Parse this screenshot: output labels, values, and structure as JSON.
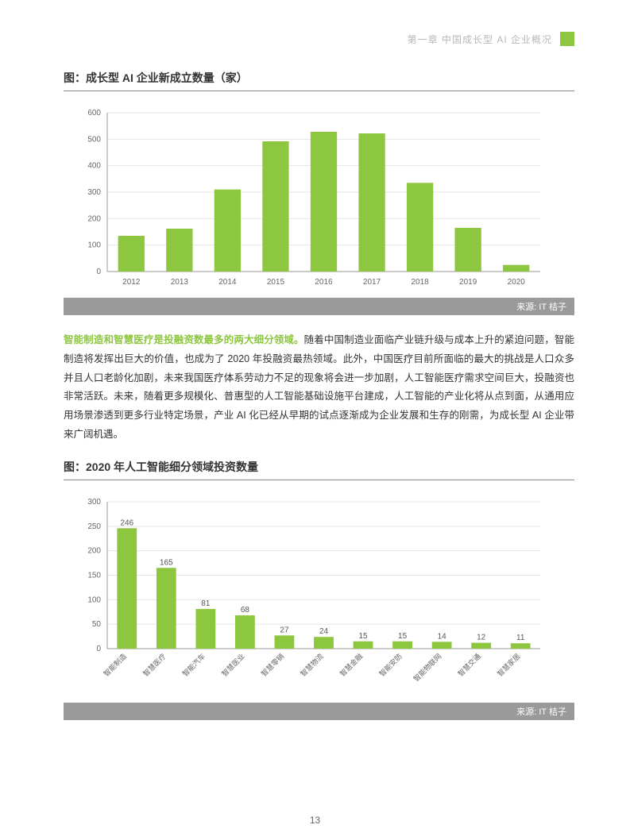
{
  "header": {
    "chapter": "第一章  中国成长型 AI 企业概况"
  },
  "chart1": {
    "title": "图：成长型 AI 企业新成立数量（家）",
    "type": "bar",
    "categories": [
      "2012",
      "2013",
      "2014",
      "2015",
      "2016",
      "2017",
      "2018",
      "2019",
      "2020"
    ],
    "values": [
      135,
      162,
      310,
      492,
      528,
      522,
      335,
      165,
      25
    ],
    "ylim": [
      0,
      600
    ],
    "ytick_step": 100,
    "bar_color": "#8dc63f",
    "axis_color": "#999",
    "grid_color": "#e5e5e5",
    "label_fontsize": 10,
    "bar_width": 0.55,
    "source": "来源: IT 桔子"
  },
  "paragraph": {
    "highlight": "智能制造和智慧医疗是投融资数最多的两大细分领域。",
    "rest": "随着中国制造业面临产业链升级与成本上升的紧迫问题，智能制造将发挥出巨大的价值，也成为了 2020 年投融资最热领域。此外，中国医疗目前所面临的最大的挑战是人口众多并且人口老龄化加剧，未来我国医疗体系劳动力不足的现象将会进一步加剧，人工智能医疗需求空间巨大，投融资也非常活跃。未来，随着更多规模化、普惠型的人工智能基础设施平台建成，人工智能的产业化将从点到面，从通用应用场景渗透到更多行业特定场景，产业 AI 化已经从早期的试点逐渐成为企业发展和生存的刚需，为成长型 AI 企业带来广阔机遇。"
  },
  "chart2": {
    "title": "图：2020 年人工智能细分领域投资数量",
    "type": "bar",
    "categories": [
      "智能制造",
      "智慧医疗",
      "智能汽车",
      "智慧医业",
      "智慧零销",
      "智慧物流",
      "智慧金融",
      "智能安防",
      "智能物联网",
      "智慧交通",
      "智慧家居"
    ],
    "values": [
      246,
      165,
      81,
      68,
      27,
      24,
      15,
      15,
      14,
      12,
      11
    ],
    "ylim": [
      0,
      300
    ],
    "ytick_step": 50,
    "bar_color": "#8dc63f",
    "axis_color": "#999",
    "grid_color": "#e5e5e5",
    "label_fontsize": 9,
    "bar_width": 0.5,
    "source": "来源: IT 桔子"
  },
  "page_number": "13"
}
